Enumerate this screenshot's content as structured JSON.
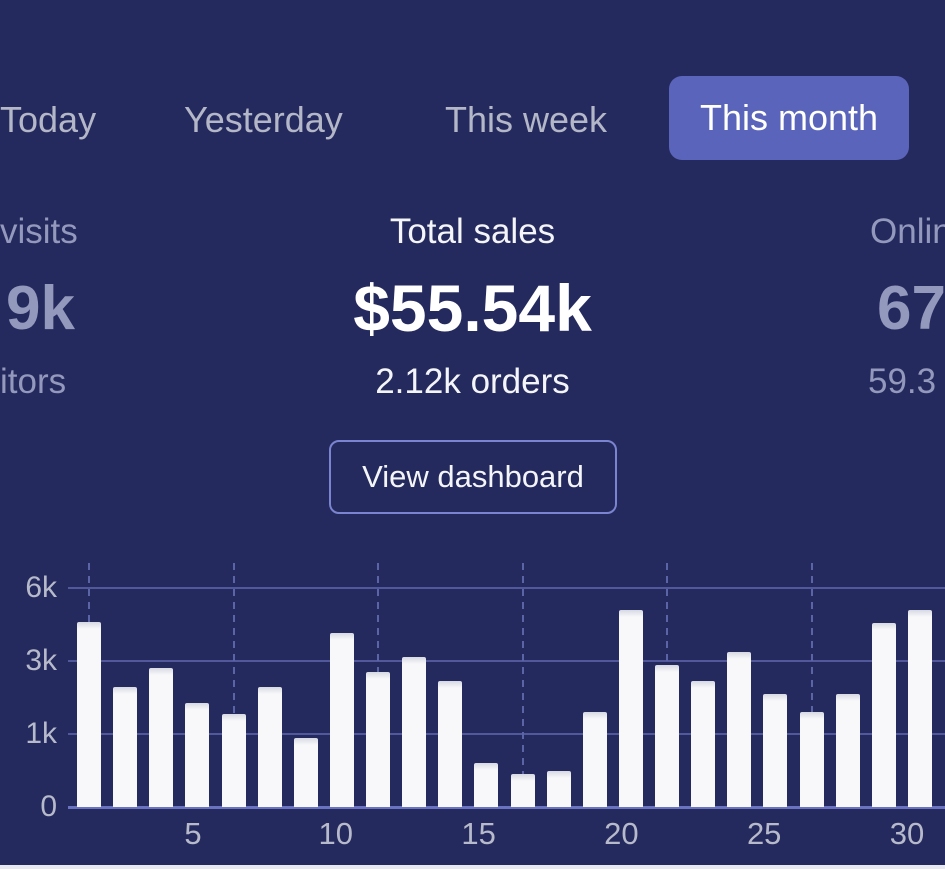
{
  "tab_bar": {
    "items": [
      {
        "label": "Today",
        "selected": false
      },
      {
        "label": "Yesterday",
        "selected": false
      },
      {
        "label": "This week",
        "selected": false
      },
      {
        "label": "This month",
        "selected": true
      }
    ]
  },
  "summary": {
    "left": {
      "label_fragment": "visits",
      "value_fragment": "9k",
      "sub_fragment": "itors"
    },
    "center": {
      "label": "Total sales",
      "value": "$55.54k",
      "sub": "2.12k orders"
    },
    "right": {
      "label_fragment": "Onlin",
      "value_fragment": "67",
      "sub_fragment": "59.3"
    }
  },
  "actions": {
    "view_dashboard_label": "View dashboard"
  },
  "chart_data": {
    "type": "bar",
    "title": "",
    "xlabel": "",
    "ylabel": "",
    "values": [
      4600,
      2300,
      2800,
      1850,
      1550,
      2300,
      950,
      4150,
      2700,
      3150,
      2450,
      600,
      450,
      500,
      1600,
      5100,
      2900,
      2450,
      3350,
      2100,
      1600,
      2100,
      4550,
      5100
    ],
    "bars_visible": 24,
    "x_tick_labels": [
      "5",
      "10",
      "15",
      "20",
      "25",
      "30"
    ],
    "y_ticks": [
      {
        "label": "0",
        "value": 0
      },
      {
        "label": "1k",
        "value": 1000
      },
      {
        "label": "3k",
        "value": 3000
      },
      {
        "label": "6k",
        "value": 6000
      }
    ],
    "y_axis_scale": "non-linear: ticks 0, 1k, 3k, 6k are equally spaced",
    "grid": "horizontal solid lines at each y-tick; vertical dashed guide above every 4th bar",
    "legend": "none",
    "bar_color": "#F8F8FB"
  },
  "colors": {
    "background": "#252A5E",
    "accent_pill": "#5A64BA",
    "bar": "#F8F8FB",
    "muted_text": "#9398BD",
    "tab_text": "#B3B7C7",
    "axis_text": "#B6BACA",
    "button_border": "#7B84D0",
    "grid_line": "#51589B",
    "axis_line": "#6A73C0",
    "dashed_line": "#5C64A8",
    "bottom_strip": "#E7E8F0",
    "white_text": "#F4F5F8"
  }
}
